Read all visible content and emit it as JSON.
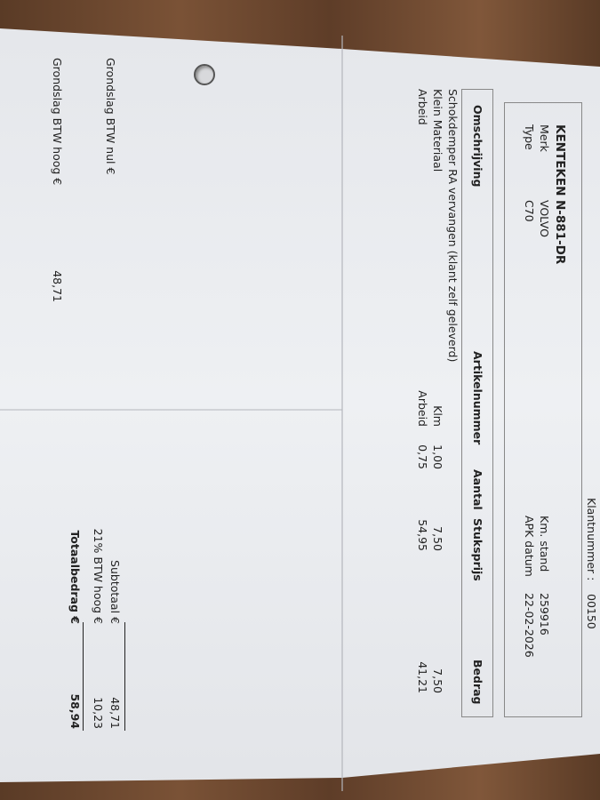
{
  "customer": {
    "label": "Klantnummer :",
    "value": "00150"
  },
  "vehicle": {
    "kenteken_label": "KENTEKEN",
    "kenteken": "N-881-DR",
    "merk_label": "Merk",
    "merk": "VOLVO",
    "type_label": "Type",
    "type": "C70",
    "km_label": "Km. stand",
    "km": "259916",
    "apk_label": "APK datum",
    "apk": "22-02-2026"
  },
  "table": {
    "headers": [
      "Omschrijving",
      "Artikelnummer",
      "Aantal",
      "Stuksprijs",
      "Bedrag"
    ],
    "rows": [
      {
        "omschrijving": "Schokdemper RA vervangen (klant zelf geleverd)",
        "artikel": "",
        "aantal": "",
        "prijs": "",
        "bedrag": ""
      },
      {
        "omschrijving": "Klein Materiaal",
        "artikel": "Klm",
        "aantal": "1,00",
        "prijs": "7,50",
        "bedrag": "7,50"
      },
      {
        "omschrijving": "Arbeid",
        "artikel": "Arbeid",
        "aantal": "0,75",
        "prijs": "54,95",
        "bedrag": "41,21"
      }
    ]
  },
  "totals": {
    "subtotaal_label": "Subtotaal €",
    "subtotaal": "48,71",
    "btw_label": "21%  BTW hoog €",
    "btw": "10,23",
    "totaal_label": "Totaalbedrag €",
    "totaal": "58,94"
  },
  "grondslag": {
    "nul_label": "Grondslag BTW nul €",
    "hoog_label": "Grondslag BTW hoog €",
    "hoog": "48,71"
  }
}
